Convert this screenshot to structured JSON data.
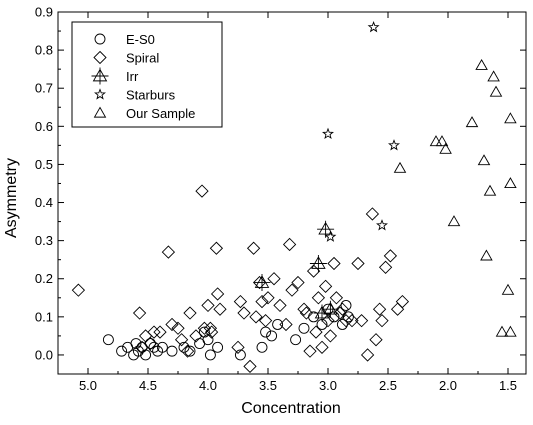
{
  "chart_data": {
    "type": "scatter",
    "xlabel": "Concentration",
    "ylabel": "Asymmetry",
    "xlim": [
      5.25,
      1.35
    ],
    "ylim": [
      -0.05,
      0.9
    ],
    "x_reversed": true,
    "grid": false,
    "legend_position": "top-left",
    "xticks": [
      "5.0",
      "4.5",
      "4.0",
      "3.5",
      "3.0",
      "2.5",
      "2.0",
      "1.5"
    ],
    "xtick_values": [
      5.0,
      4.5,
      4.0,
      3.5,
      3.0,
      2.5,
      2.0,
      1.5
    ],
    "yticks": [
      "0.0",
      "0.1",
      "0.2",
      "0.3",
      "0.4",
      "0.5",
      "0.6",
      "0.7",
      "0.8",
      "0.9"
    ],
    "ytick_values": [
      0.0,
      0.1,
      0.2,
      0.3,
      0.4,
      0.5,
      0.6,
      0.7,
      0.8,
      0.9
    ],
    "series": [
      {
        "name": "E-S0",
        "marker": "circle",
        "points": [
          [
            4.83,
            0.04
          ],
          [
            4.72,
            0.01
          ],
          [
            4.67,
            0.02
          ],
          [
            4.62,
            0.0
          ],
          [
            4.6,
            0.03
          ],
          [
            4.58,
            0.01
          ],
          [
            4.55,
            0.02
          ],
          [
            4.52,
            0.0
          ],
          [
            4.48,
            0.03
          ],
          [
            4.45,
            0.02
          ],
          [
            4.42,
            0.01
          ],
          [
            4.38,
            0.02
          ],
          [
            4.3,
            0.01
          ],
          [
            4.2,
            0.02
          ],
          [
            4.15,
            0.01
          ],
          [
            4.07,
            0.03
          ],
          [
            4.03,
            0.06
          ],
          [
            4.0,
            0.04
          ],
          [
            3.98,
            0.0
          ],
          [
            3.92,
            0.02
          ],
          [
            3.73,
            0.0
          ],
          [
            3.55,
            0.02
          ],
          [
            3.52,
            0.06
          ],
          [
            3.47,
            0.05
          ],
          [
            3.42,
            0.08
          ],
          [
            3.27,
            0.04
          ],
          [
            3.2,
            0.07
          ],
          [
            3.12,
            0.1
          ],
          [
            3.05,
            0.08
          ],
          [
            3.0,
            0.12
          ],
          [
            2.95,
            0.1
          ],
          [
            2.88,
            0.08
          ],
          [
            2.85,
            0.13
          ],
          [
            2.83,
            0.1
          ]
        ]
      },
      {
        "name": "Spiral",
        "marker": "diamond",
        "points": [
          [
            5.08,
            0.17
          ],
          [
            4.57,
            0.11
          ],
          [
            4.55,
            0.02
          ],
          [
            4.52,
            0.05
          ],
          [
            4.48,
            0.03
          ],
          [
            4.45,
            0.06
          ],
          [
            4.4,
            0.06
          ],
          [
            4.33,
            0.27
          ],
          [
            4.3,
            0.08
          ],
          [
            4.25,
            0.07
          ],
          [
            4.22,
            0.04
          ],
          [
            4.17,
            0.01
          ],
          [
            4.15,
            0.11
          ],
          [
            4.1,
            0.05
          ],
          [
            4.05,
            0.43
          ],
          [
            4.03,
            0.07
          ],
          [
            4.0,
            0.13
          ],
          [
            3.98,
            0.07
          ],
          [
            3.97,
            0.06
          ],
          [
            3.93,
            0.28
          ],
          [
            3.92,
            0.16
          ],
          [
            3.9,
            0.12
          ],
          [
            3.75,
            0.02
          ],
          [
            3.73,
            0.14
          ],
          [
            3.7,
            0.11
          ],
          [
            3.65,
            -0.03
          ],
          [
            3.62,
            0.28
          ],
          [
            3.6,
            0.1
          ],
          [
            3.57,
            0.19
          ],
          [
            3.55,
            0.14
          ],
          [
            3.52,
            0.09
          ],
          [
            3.5,
            0.15
          ],
          [
            3.45,
            0.2
          ],
          [
            3.4,
            0.13
          ],
          [
            3.35,
            0.08
          ],
          [
            3.32,
            0.29
          ],
          [
            3.3,
            0.17
          ],
          [
            3.25,
            0.19
          ],
          [
            3.2,
            0.12
          ],
          [
            3.18,
            0.11
          ],
          [
            3.15,
            0.01
          ],
          [
            3.12,
            0.22
          ],
          [
            3.1,
            0.06
          ],
          [
            3.08,
            0.15
          ],
          [
            3.05,
            0.02
          ],
          [
            3.02,
            0.18
          ],
          [
            3.0,
            0.09
          ],
          [
            2.98,
            0.05
          ],
          [
            2.95,
            0.24
          ],
          [
            2.93,
            0.15
          ],
          [
            2.9,
            0.11
          ],
          [
            2.88,
            0.12
          ],
          [
            2.85,
            0.09
          ],
          [
            2.8,
            0.09
          ],
          [
            2.75,
            0.24
          ],
          [
            2.72,
            0.09
          ],
          [
            2.67,
            0.0
          ],
          [
            2.63,
            0.37
          ],
          [
            2.6,
            0.04
          ],
          [
            2.57,
            0.12
          ],
          [
            2.55,
            0.09
          ],
          [
            2.52,
            0.23
          ],
          [
            2.48,
            0.26
          ],
          [
            2.42,
            0.12
          ],
          [
            2.38,
            0.14
          ]
        ]
      },
      {
        "name": "Irr",
        "marker": "cross-triangle",
        "points": [
          [
            3.55,
            0.19
          ],
          [
            3.08,
            0.24
          ],
          [
            3.02,
            0.33
          ],
          [
            3.05,
            0.11
          ],
          [
            2.98,
            0.12
          ]
        ]
      },
      {
        "name": "Starburs",
        "marker": "star",
        "points": [
          [
            2.62,
            0.86
          ],
          [
            3.0,
            0.58
          ],
          [
            2.45,
            0.55
          ],
          [
            2.55,
            0.34
          ],
          [
            2.98,
            0.31
          ]
        ]
      },
      {
        "name": "Our Sample",
        "marker": "triangle",
        "points": [
          [
            1.72,
            0.76
          ],
          [
            1.62,
            0.73
          ],
          [
            1.6,
            0.69
          ],
          [
            1.48,
            0.62
          ],
          [
            1.8,
            0.61
          ],
          [
            2.1,
            0.56
          ],
          [
            2.05,
            0.56
          ],
          [
            2.02,
            0.54
          ],
          [
            1.7,
            0.51
          ],
          [
            2.4,
            0.49
          ],
          [
            1.48,
            0.45
          ],
          [
            1.65,
            0.43
          ],
          [
            1.95,
            0.35
          ],
          [
            1.68,
            0.26
          ],
          [
            1.5,
            0.17
          ],
          [
            1.55,
            0.06
          ],
          [
            1.48,
            0.06
          ]
        ]
      }
    ]
  }
}
